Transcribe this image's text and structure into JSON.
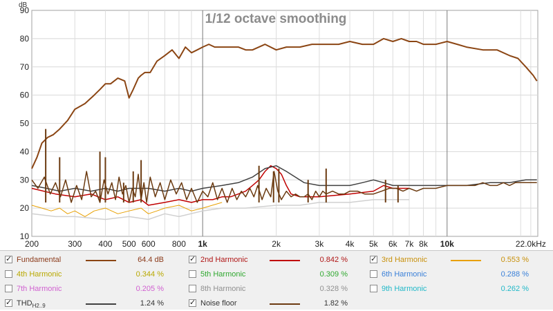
{
  "chart_data": {
    "type": "line",
    "title": "1/12 octave smoothing",
    "ylabel": "dB",
    "xscale": "log",
    "xlim": [
      200,
      23500
    ],
    "ylim": [
      10,
      90
    ],
    "yticks": [
      10,
      20,
      30,
      40,
      50,
      60,
      70,
      80,
      90
    ],
    "xticks": [
      {
        "v": 200,
        "label": "200"
      },
      {
        "v": 300,
        "label": "300"
      },
      {
        "v": 400,
        "label": "400"
      },
      {
        "v": 500,
        "label": "500"
      },
      {
        "v": 600,
        "label": "600"
      },
      {
        "v": 800,
        "label": "800"
      },
      {
        "v": 1000,
        "label": "1k"
      },
      {
        "v": 2000,
        "label": "2k"
      },
      {
        "v": 3000,
        "label": "3k"
      },
      {
        "v": 4000,
        "label": "4k"
      },
      {
        "v": 5000,
        "label": "5k"
      },
      {
        "v": 6000,
        "label": "6k"
      },
      {
        "v": 7000,
        "label": "7k"
      },
      {
        "v": 8000,
        "label": "8k"
      },
      {
        "v": 10000,
        "label": "10k"
      },
      {
        "v": 22000,
        "label": "22.0kHz"
      }
    ],
    "grid": true,
    "legend_position": "bottom",
    "series": [
      {
        "key": "fundamental",
        "color": "#8b4513",
        "width": 2,
        "x": [
          200,
          210,
          220,
          232,
          245,
          260,
          280,
          300,
          330,
          360,
          380,
          400,
          420,
          450,
          480,
          500,
          520,
          545,
          560,
          580,
          610,
          650,
          700,
          750,
          800,
          850,
          900,
          950,
          1000,
          1060,
          1120,
          1200,
          1300,
          1400,
          1500,
          1600,
          1800,
          2000,
          2200,
          2500,
          2800,
          3200,
          3600,
          4000,
          4500,
          5000,
          5500,
          6000,
          6500,
          7000,
          7500,
          8000,
          9000,
          10000,
          11000,
          12000,
          14000,
          16000,
          18000,
          19500,
          21000,
          22500,
          23300
        ],
        "y": [
          34,
          38,
          43,
          45,
          46,
          48,
          51,
          55,
          57,
          60,
          62,
          64,
          64,
          66,
          65,
          59,
          62,
          66,
          67,
          68,
          68,
          72,
          74,
          76,
          73,
          77,
          75,
          76,
          77,
          78,
          77,
          77,
          77,
          77,
          76,
          76,
          78,
          76,
          77,
          77,
          78,
          78,
          78,
          79,
          78,
          78,
          80,
          79,
          80,
          79,
          79,
          78,
          78,
          79,
          78,
          77,
          76,
          76,
          74,
          73,
          70,
          67,
          65
        ]
      },
      {
        "key": "h2",
        "color": "#c00000",
        "width": 1.5,
        "x": [
          200,
          250,
          300,
          350,
          400,
          450,
          500,
          560,
          600,
          700,
          800,
          900,
          1000,
          1100,
          1200,
          1300,
          1400,
          1500,
          1600,
          1700,
          1800,
          1900,
          2000,
          2100,
          2200,
          2300,
          2500,
          3000,
          4000,
          5000,
          5500,
          6000,
          6500,
          7000
        ],
        "y": [
          27,
          25,
          24,
          25,
          23,
          24,
          22,
          23,
          21,
          22,
          23,
          22,
          23,
          23,
          24,
          24,
          25,
          26,
          28,
          30,
          33,
          35,
          34,
          32,
          28,
          25,
          24,
          24,
          25,
          26,
          28,
          27,
          27,
          27
        ]
      },
      {
        "key": "h3",
        "color": "#e8a000",
        "width": 1,
        "x": [
          200,
          220,
          240,
          260,
          280,
          300,
          330,
          360,
          400,
          450,
          500,
          560,
          600,
          650,
          700,
          800,
          900,
          1000,
          1200
        ],
        "y": [
          21,
          20,
          19,
          20,
          18,
          19,
          17,
          19,
          20,
          18,
          19,
          20,
          18,
          19,
          20,
          21,
          19,
          20,
          22
        ]
      },
      {
        "key": "thd",
        "color": "#404040",
        "width": 1.5,
        "x": [
          200,
          230,
          260,
          300,
          350,
          400,
          450,
          500,
          600,
          700,
          800,
          900,
          1000,
          1200,
          1400,
          1600,
          1800,
          2000,
          2200,
          2600,
          3000,
          4000,
          4500,
          5000,
          5500,
          6000,
          7000,
          8000,
          10000,
          12000,
          15000,
          18000,
          21000,
          23300
        ],
        "y": [
          28,
          27,
          26,
          27,
          26,
          27,
          26,
          27,
          27,
          26,
          27,
          26,
          27,
          28,
          29,
          31,
          34,
          35,
          33,
          29,
          28,
          28,
          29,
          30,
          29,
          28,
          28,
          28,
          28,
          28,
          29,
          29,
          30,
          30
        ]
      },
      {
        "key": "h8",
        "color": "#d0d0d0",
        "width": 1.5,
        "x": [
          200,
          250,
          300,
          400,
          500,
          600,
          700,
          800,
          1000,
          1200,
          1500,
          2000,
          2500,
          3000,
          4000,
          5000,
          6000,
          7000
        ],
        "y": [
          18,
          17,
          17,
          16,
          17,
          16,
          18,
          17,
          19,
          20,
          20,
          21,
          21,
          22,
          22,
          23,
          23,
          23
        ]
      },
      {
        "key": "noise",
        "color": "#6b3a10",
        "width": 1.5,
        "x": [
          200,
          212,
          225,
          238,
          250,
          262,
          275,
          290,
          305,
          320,
          335,
          350,
          365,
          380,
          395,
          410,
          425,
          440,
          455,
          470,
          485,
          500,
          515,
          530,
          545,
          560,
          575,
          590,
          610,
          640,
          670,
          700,
          740,
          780,
          820,
          860,
          900,
          950,
          1000,
          1050,
          1100,
          1150,
          1200,
          1260,
          1320,
          1380,
          1440,
          1500,
          1560,
          1620,
          1680,
          1750,
          1820,
          1900,
          1960,
          2030,
          2100,
          2200,
          2300,
          2400,
          2500,
          2600,
          2700,
          2800,
          2900,
          3000,
          3100,
          3200,
          3400,
          3600,
          3800,
          4000,
          4300,
          4600,
          5000,
          5400,
          5800,
          6200,
          6600,
          7000,
          7500,
          8000,
          8500,
          9000,
          10000,
          11000,
          12000,
          13000,
          14000,
          15000,
          16000,
          17000,
          18000,
          19000,
          20000,
          21000,
          22000,
          23300
        ],
        "y": [
          30,
          27,
          31,
          25,
          29,
          24,
          30,
          22,
          28,
          23,
          33,
          24,
          26,
          22,
          30,
          25,
          29,
          23,
          31,
          25,
          28,
          22,
          27,
          24,
          32,
          23,
          29,
          22,
          31,
          24,
          29,
          23,
          30,
          25,
          29,
          23,
          27,
          22,
          26,
          24,
          29,
          23,
          27,
          22,
          27,
          23,
          26,
          24,
          27,
          24,
          28,
          23,
          27,
          24,
          33,
          26,
          23,
          26,
          24,
          25,
          24,
          24,
          25,
          23,
          26,
          24,
          26,
          25,
          26,
          25,
          25,
          26,
          26,
          25,
          25,
          26,
          27,
          27,
          26,
          27,
          26,
          27,
          27,
          27,
          28,
          28,
          28,
          28,
          29,
          28,
          28,
          29,
          28,
          29,
          29,
          29,
          29,
          29
        ]
      },
      {
        "key": "noise_spikes",
        "color": "#6b3a10",
        "width": 2,
        "x": [
          228,
          260,
          380,
          400,
          475,
          520,
          560,
          1700,
          1950,
          2050,
          2700,
          3200,
          5600,
          6300
        ],
        "y": [
          48,
          38,
          40,
          38,
          29,
          33,
          37,
          35,
          33,
          34,
          30,
          34,
          30,
          28
        ]
      }
    ],
    "legend": [
      [
        {
          "label": "Fundamental",
          "sub": "",
          "value": "64.4 dB",
          "checked": true,
          "text_color": "#8b3a1a",
          "swatch": "#8b4513"
        },
        {
          "label": "2nd Harmonic",
          "sub": "",
          "value": "0.842 %",
          "checked": true,
          "text_color": "#b01515",
          "swatch": "#c00000"
        },
        {
          "label": "3rd Harmonic",
          "sub": "",
          "value": "0.553 %",
          "checked": true,
          "text_color": "#c8900a",
          "swatch": "#e8a000"
        }
      ],
      [
        {
          "label": "4th Harmonic",
          "sub": "",
          "value": "0.344 %",
          "checked": false,
          "text_color": "#b8a800",
          "swatch": ""
        },
        {
          "label": "5th Harmonic",
          "sub": "",
          "value": "0.309 %",
          "checked": false,
          "text_color": "#30a830",
          "swatch": ""
        },
        {
          "label": "6th Harmonic",
          "sub": "",
          "value": "0.288 %",
          "checked": false,
          "text_color": "#3a80d8",
          "swatch": ""
        }
      ],
      [
        {
          "label": "7th Harmonic",
          "sub": "",
          "value": "0.205 %",
          "checked": false,
          "text_color": "#d060d0",
          "swatch": ""
        },
        {
          "label": "8th Harmonic",
          "sub": "",
          "value": "0.328 %",
          "checked": false,
          "text_color": "#909090",
          "swatch": ""
        },
        {
          "label": "9th Harmonic",
          "sub": "",
          "value": "0.262 %",
          "checked": false,
          "text_color": "#20b8c8",
          "swatch": ""
        }
      ],
      [
        {
          "label": "THD",
          "sub": "H2..9",
          "value": "1.24 %",
          "checked": true,
          "text_color": "#333333",
          "swatch": "#404040"
        },
        {
          "label": "Noise floor",
          "sub": "",
          "value": "1.82 %",
          "checked": true,
          "text_color": "#333333",
          "swatch": "#6b3a10"
        }
      ]
    ]
  }
}
